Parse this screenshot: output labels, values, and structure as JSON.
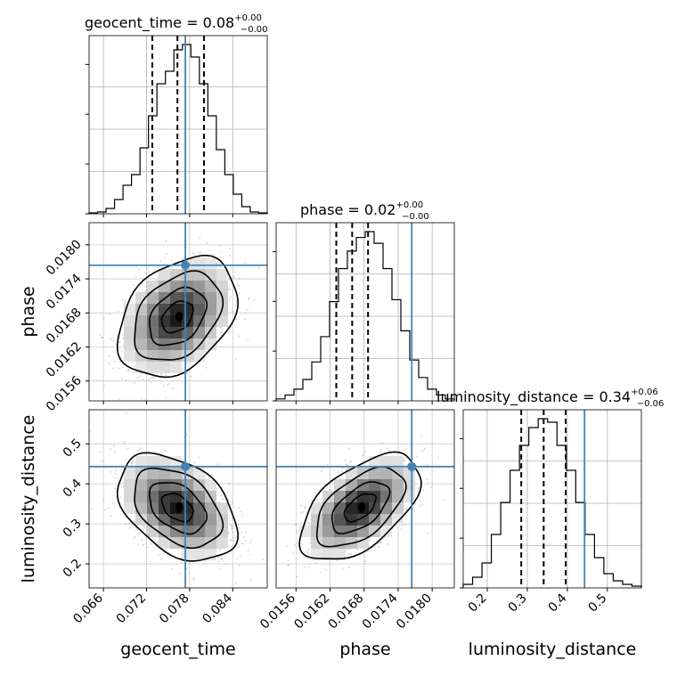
{
  "chart_data": {
    "type": "corner",
    "parameters": [
      "geocent_time",
      "phase",
      "luminosity_distance"
    ],
    "truth": {
      "geocent_time": 0.0774,
      "phase": 0.01764,
      "luminosity_distance": 0.443
    },
    "truth_color": "#4682b4",
    "titles": [
      {
        "param": "geocent_time",
        "text": "geocent_time = 0.08",
        "plus": "+0.00",
        "minus": "−0.00"
      },
      {
        "param": "phase",
        "text": "phase = 0.02",
        "plus": "+0.00",
        "minus": "−0.00"
      },
      {
        "param": "luminosity_distance",
        "text": "luminosity_distance = 0.34",
        "plus": "+0.06",
        "minus": "−0.06"
      }
    ],
    "axis_labels": {
      "geocent_time": "geocent_time",
      "phase": "phase",
      "luminosity_distance": "luminosity_distance"
    },
    "ranges": {
      "geocent_time": [
        0.064,
        0.0888
      ],
      "phase": [
        0.01525,
        0.01839
      ],
      "luminosity_distance": [
        0.14,
        0.585
      ]
    },
    "ticks": {
      "geocent_time": [
        "0.066",
        "0.072",
        "0.078",
        "0.084"
      ],
      "phase": [
        "0.0156",
        "0.0162",
        "0.0168",
        "0.0174",
        "0.0180"
      ],
      "luminosity_distance": [
        "0.2",
        "0.3",
        "0.4",
        "0.5"
      ]
    },
    "quantiles": {
      "geocent_time": [
        0.0728,
        0.0763,
        0.08
      ],
      "phase": [
        0.01631,
        0.01659,
        0.01687
      ],
      "luminosity_distance": [
        0.285,
        0.341,
        0.396
      ]
    },
    "histograms": {
      "geocent_time": [
        0.5,
        1,
        3,
        8,
        16,
        22,
        37,
        55,
        73,
        80,
        92,
        95,
        88,
        73,
        55,
        36,
        22,
        11,
        4,
        1,
        0.5
      ],
      "phase": [
        1,
        3,
        6,
        11,
        20,
        33,
        51,
        68,
        77,
        84,
        87,
        81,
        68,
        52,
        36,
        21,
        12,
        6,
        3,
        1
      ],
      "luminosity_distance": [
        2,
        6,
        14,
        30,
        48,
        66,
        80,
        90,
        95,
        93,
        80,
        66,
        48,
        30,
        17,
        8,
        4,
        2,
        1
      ]
    },
    "pair_stats": [
      {
        "x": "geocent_time",
        "y": "phase",
        "mean": [
          0.0763,
          0.01673
        ],
        "sd": [
          0.0036,
          0.00046
        ],
        "rho": 0.35
      },
      {
        "x": "geocent_time",
        "y": "luminosity_distance",
        "mean": [
          0.0763,
          0.341
        ],
        "sd": [
          0.0036,
          0.058
        ],
        "rho": -0.4
      },
      {
        "x": "phase",
        "y": "luminosity_distance",
        "mean": [
          0.01673,
          0.341
        ],
        "sd": [
          0.00046,
          0.058
        ],
        "rho": 0.55
      }
    ]
  }
}
